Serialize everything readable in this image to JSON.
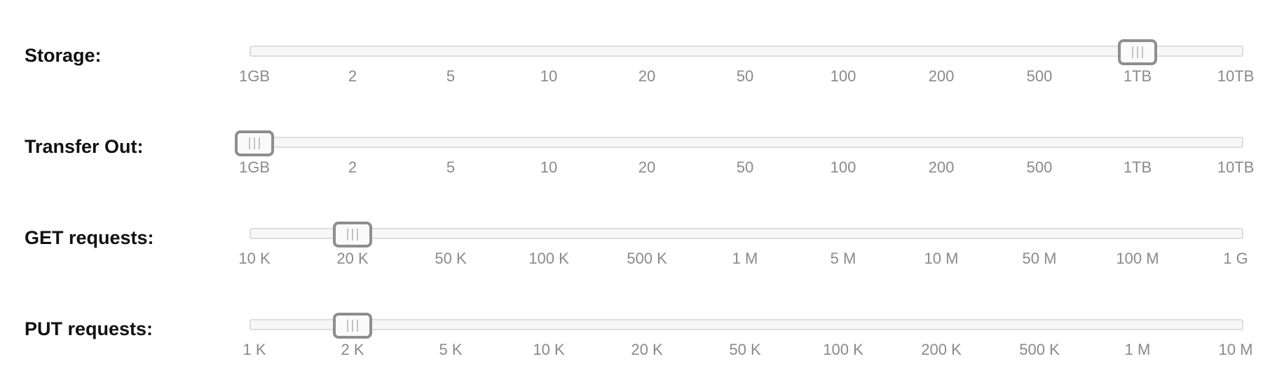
{
  "sliders": [
    {
      "label": "Storage:",
      "ticks": [
        "1GB",
        "2",
        "5",
        "10",
        "20",
        "50",
        "100",
        "200",
        "500",
        "1TB",
        "10TB"
      ],
      "value_index": 9,
      "value": "1TB"
    },
    {
      "label": "Transfer Out:",
      "ticks": [
        "1GB",
        "2",
        "5",
        "10",
        "20",
        "50",
        "100",
        "200",
        "500",
        "1TB",
        "10TB"
      ],
      "value_index": 0,
      "value": "1GB"
    },
    {
      "label": "GET requests:",
      "ticks": [
        "10 K",
        "20 K",
        "50 K",
        "100 K",
        "500 K",
        "1 M",
        "5 M",
        "10 M",
        "50 M",
        "100 M",
        "1 G"
      ],
      "value_index": 1,
      "value": "20 K"
    },
    {
      "label": "PUT requests:",
      "ticks": [
        "1 K",
        "2 K",
        "5 K",
        "10 K",
        "20 K",
        "50 K",
        "100 K",
        "200 K",
        "500 K",
        "1 M",
        "10 M"
      ],
      "value_index": 1,
      "value": "2 K"
    }
  ],
  "colors": {
    "label": "#111111",
    "tick": "#8a8a8a",
    "track_border": "#dddddd",
    "track_fill": "#f7f7f7",
    "handle_border": "#8e8e8e",
    "grip": "#c4c4c4"
  },
  "icons": {
    "handle_grip": "grip-lines-icon"
  }
}
